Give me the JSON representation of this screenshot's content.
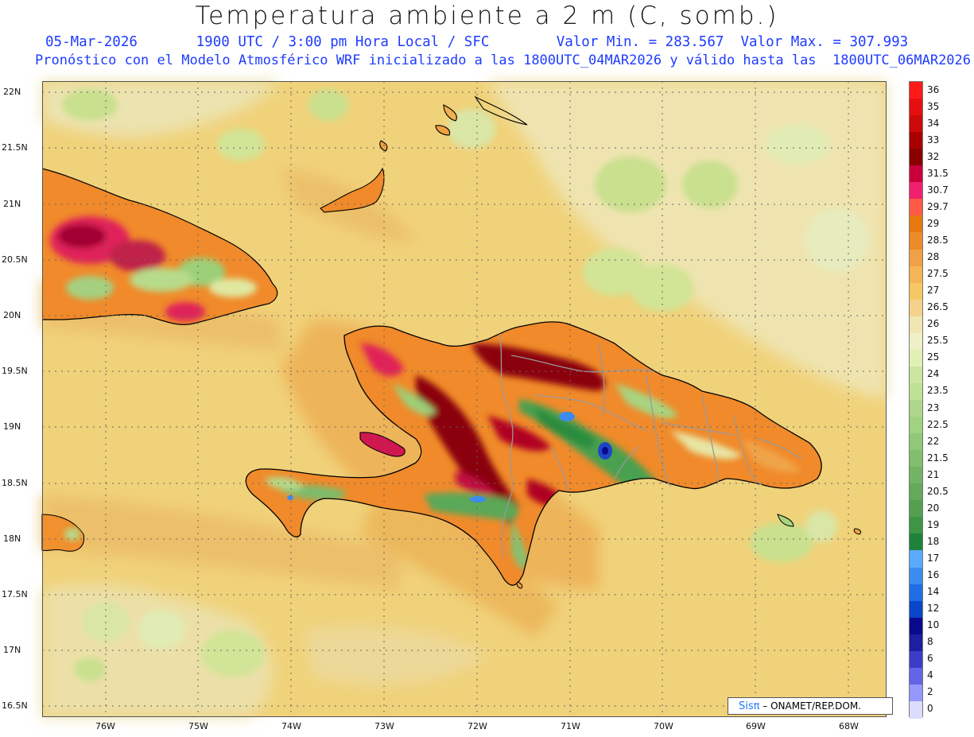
{
  "header": {
    "title": "Temperatura ambiente a 2 m (C, somb.)",
    "info_line": "05-Mar-2026       1900 UTC / 3:00 pm Hora Local / SFC        Valor Min. = 283.567  Valor Max. = 307.993",
    "model_line": "Pronóstico con el Modelo Atmosférico WRF inicializado a las 1800UTC_04MAR2026 y válido hasta las  1800UTC_06MAR2026"
  },
  "map": {
    "lat_labels": [
      "22N",
      "21.5N",
      "21N",
      "20.5N",
      "20N",
      "19.5N",
      "19N",
      "18.5N",
      "18N",
      "17.5N",
      "17N",
      "16.5N"
    ],
    "lon_labels": [
      "76W",
      "75W",
      "74W",
      "73W",
      "72W",
      "71W",
      "70W",
      "69W",
      "68W"
    ],
    "colors": {
      "sea": "#f0d27a",
      "coast": "#000000",
      "border": "#9a9a9a"
    }
  },
  "colorbar": {
    "labels": [
      "36",
      "35",
      "34",
      "33",
      "32",
      "31.5",
      "30.7",
      "29.7",
      "29",
      "28.5",
      "28",
      "27.5",
      "27",
      "26.5",
      "26",
      "25.5",
      "25",
      "24",
      "23.5",
      "23",
      "22.5",
      "22",
      "21.5",
      "21",
      "20.5",
      "20",
      "19",
      "18",
      "17",
      "16",
      "14",
      "12",
      "10",
      "8",
      "6",
      "4",
      "2",
      "0"
    ],
    "colors": [
      "#ff1a1a",
      "#e60f0f",
      "#cc0a0a",
      "#a80000",
      "#8a0000",
      "#c8003c",
      "#f0206e",
      "#ff5a46",
      "#e6780f",
      "#eb8c28",
      "#f0a046",
      "#f5b455",
      "#f5c864",
      "#f5d28c",
      "#f0e6b4",
      "#eff0c8",
      "#e1f0b4",
      "#cce6a0",
      "#bee196",
      "#afd78c",
      "#a0d282",
      "#91c878",
      "#82be6e",
      "#73b464",
      "#64aa5a",
      "#55a050",
      "#3c9646",
      "#1e823c",
      "#5aaaff",
      "#3c8cf0",
      "#1e6ee6",
      "#0a46c8",
      "#0a0a8c",
      "#1e1ea0",
      "#3c3cc8",
      "#6464e6",
      "#9696ff",
      "#dcdcff"
    ]
  },
  "branding": {
    "logo": "Sisπ",
    "text": " –  ONAMET/REP.DOM."
  }
}
